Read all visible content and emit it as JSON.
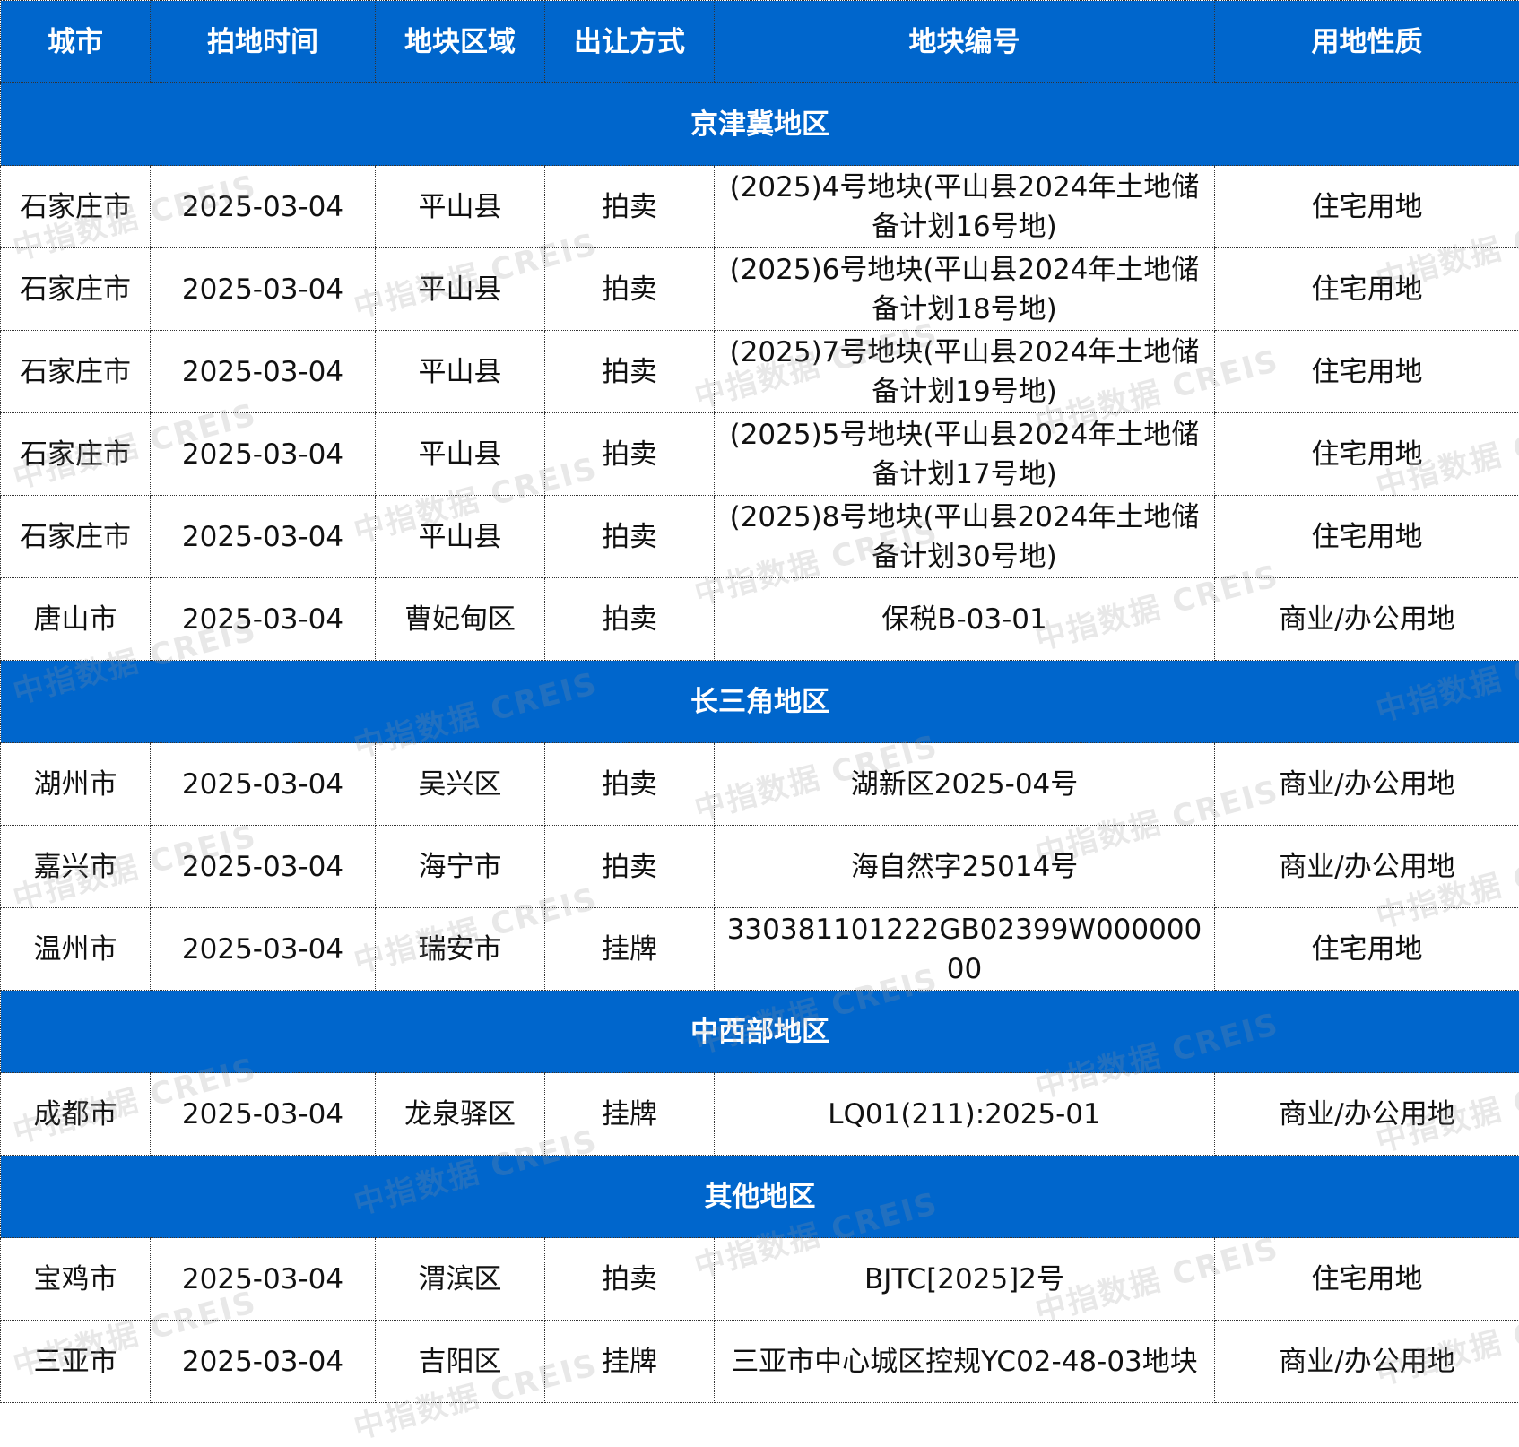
{
  "table": {
    "headers": [
      "城市",
      "拍地时间",
      "地块区域",
      "出让方式",
      "地块编号",
      "用地性质"
    ],
    "sections": [
      {
        "region": "京津冀地区",
        "rows": [
          [
            "石家庄市",
            "2025-03-04",
            "平山县",
            "拍卖",
            "(2025)4号地块(平山县2024年土地储备计划16号地)",
            "住宅用地"
          ],
          [
            "石家庄市",
            "2025-03-04",
            "平山县",
            "拍卖",
            "(2025)6号地块(平山县2024年土地储备计划18号地)",
            "住宅用地"
          ],
          [
            "石家庄市",
            "2025-03-04",
            "平山县",
            "拍卖",
            "(2025)7号地块(平山县2024年土地储备计划19号地)",
            "住宅用地"
          ],
          [
            "石家庄市",
            "2025-03-04",
            "平山县",
            "拍卖",
            "(2025)5号地块(平山县2024年土地储备计划17号地)",
            "住宅用地"
          ],
          [
            "石家庄市",
            "2025-03-04",
            "平山县",
            "拍卖",
            "(2025)8号地块(平山县2024年土地储备计划30号地)",
            "住宅用地"
          ],
          [
            "唐山市",
            "2025-03-04",
            "曹妃甸区",
            "拍卖",
            "保税B-03-01",
            "商业/办公用地"
          ]
        ]
      },
      {
        "region": "长三角地区",
        "rows": [
          [
            "湖州市",
            "2025-03-04",
            "吴兴区",
            "拍卖",
            "湖新区2025-04号",
            "商业/办公用地"
          ],
          [
            "嘉兴市",
            "2025-03-04",
            "海宁市",
            "拍卖",
            "海自然字25014号",
            "商业/办公用地"
          ],
          [
            "温州市",
            "2025-03-04",
            "瑞安市",
            "挂牌",
            "330381101222GB02399W00000000",
            "住宅用地"
          ]
        ]
      },
      {
        "region": "中西部地区",
        "rows": [
          [
            "成都市",
            "2025-03-04",
            "龙泉驿区",
            "挂牌",
            "LQ01(211):2025-01",
            "商业/办公用地"
          ]
        ]
      },
      {
        "region": "其他地区",
        "rows": [
          [
            "宝鸡市",
            "2025-03-04",
            "渭滨区",
            "拍卖",
            "BJTC[2025]2号",
            "住宅用地"
          ],
          [
            "三亚市",
            "2025-03-04",
            "吉阳区",
            "挂牌",
            "三亚市中心城区控规YC02-48-03地块",
            "商业/办公用地"
          ]
        ]
      }
    ]
  },
  "watermark": "中指数据 CREIS",
  "colors": {
    "header_bg": "#0066cc",
    "header_text": "#ffffff"
  }
}
